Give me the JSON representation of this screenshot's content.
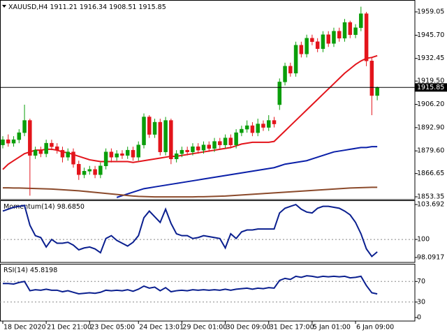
{
  "chart_data": [
    {
      "type": "candlestick",
      "symbol": "XAUUSD,H4",
      "categories": [
        "18 Dec 2020",
        null,
        null,
        null,
        null,
        null,
        null,
        null,
        "21 Dec 21:00",
        null,
        null,
        null,
        null,
        null,
        null,
        null,
        "23 Dec 05:00",
        null,
        null,
        null,
        null,
        null,
        null,
        null,
        null,
        "24 Dec 13:01",
        null,
        null,
        null,
        null,
        null,
        null,
        null,
        "29 Dec 01:00",
        null,
        null,
        null,
        null,
        null,
        null,
        null,
        "30 Dec 09:00",
        null,
        null,
        null,
        null,
        null,
        null,
        null,
        "31 Dec 17:00",
        null,
        null,
        null,
        null,
        null,
        null,
        null,
        "5 Jan 01:00",
        null,
        null,
        null,
        null,
        null,
        null,
        null,
        "6 Jan 09:00",
        null,
        null,
        null,
        null
      ],
      "ohlc": {
        "open": [
          1883,
          1886,
          1884,
          1886,
          1890,
          1897,
          1877,
          1880,
          1878,
          1884,
          1882,
          1880,
          1876,
          1879,
          1872,
          1866,
          1868,
          1869,
          1866,
          1871,
          1879,
          1876,
          1878,
          1877,
          1880,
          1876,
          1883,
          1899,
          1889,
          1896,
          1879,
          1897,
          1875,
          1878,
          1880,
          1879,
          1882,
          1880,
          1883,
          1881,
          1885,
          1883,
          1887,
          1883,
          1890,
          1892,
          1894,
          1890,
          1895,
          1893,
          1897,
          1906,
          1919,
          1928,
          1924,
          1940,
          1935,
          1944,
          1942,
          1938,
          1946,
          1941,
          1948,
          1944,
          1953,
          1946,
          1950,
          1958,
          1931,
          1911.21
        ],
        "high": [
          1888,
          1889,
          1888,
          1892,
          1906,
          1898,
          1882,
          1882,
          1886,
          1886,
          1884,
          1882,
          1881,
          1881,
          1874,
          1870,
          1871,
          1871,
          1873,
          1881,
          1881,
          1880,
          1880,
          1882,
          1882,
          1885,
          1901,
          1900,
          1898,
          1898,
          1899,
          1898,
          1880,
          1882,
          1882,
          1884,
          1884,
          1885,
          1885,
          1887,
          1887,
          1889,
          1889,
          1892,
          1894,
          1897,
          1896,
          1898,
          1897,
          1900,
          1899,
          1921,
          1930,
          1930,
          1942,
          1942,
          1946,
          1946,
          1944,
          1948,
          1948,
          1950,
          1950,
          1955,
          1954,
          1952,
          1962,
          1959,
          1933,
          1916.34
        ],
        "low": [
          1881,
          1882,
          1882,
          1884,
          1888,
          1854,
          1875,
          1876,
          1876,
          1880,
          1878,
          1873,
          1874,
          1870,
          1863,
          1864,
          1866,
          1864,
          1864,
          1869,
          1873,
          1874,
          1875,
          1875,
          1874,
          1874,
          1881,
          1887,
          1887,
          1877,
          1877,
          1872,
          1873,
          1876,
          1877,
          1877,
          1878,
          1878,
          1879,
          1879,
          1881,
          1881,
          1881,
          1881,
          1888,
          1890,
          1888,
          1888,
          1891,
          1891,
          1893,
          1903,
          1917,
          1922,
          1922,
          1933,
          1933,
          1940,
          1936,
          1936,
          1939,
          1939,
          1942,
          1942,
          1944,
          1944,
          1948,
          1928,
          1900,
          1908.51
        ],
        "close": [
          1886,
          1884,
          1886,
          1890,
          1897,
          1877,
          1880,
          1878,
          1884,
          1882,
          1880,
          1876,
          1879,
          1872,
          1866,
          1868,
          1869,
          1866,
          1871,
          1879,
          1876,
          1878,
          1877,
          1880,
          1876,
          1883,
          1899,
          1889,
          1896,
          1879,
          1897,
          1875,
          1878,
          1880,
          1879,
          1882,
          1880,
          1883,
          1881,
          1885,
          1883,
          1887,
          1883,
          1890,
          1892,
          1894,
          1890,
          1895,
          1893,
          1897,
          1895,
          1919,
          1928,
          1924,
          1940,
          1935,
          1944,
          1942,
          1938,
          1946,
          1941,
          1948,
          1944,
          1953,
          1946,
          1950,
          1958,
          1931,
          1911.2,
          1915.85
        ]
      },
      "up_color": "#0a9e0a",
      "down_color": "#e3141b",
      "moving_averages": [
        {
          "color": "#e3141b",
          "values": [
            1869,
            1872,
            1874,
            1876,
            1878,
            1879,
            1880,
            1880,
            1880.5,
            1880.5,
            1880,
            1879,
            1878.5,
            1877.5,
            1876.5,
            1875.5,
            1874.5,
            1874,
            1873.5,
            1873.5,
            1873.5,
            1873.5,
            1873.5,
            1873.5,
            1873,
            1873.5,
            1874,
            1874.5,
            1875,
            1875.5,
            1876,
            1876.5,
            1876.5,
            1877,
            1877.5,
            1878,
            1878.5,
            1879,
            1879.5,
            1880,
            1880.5,
            1881,
            1881.5,
            1882.5,
            1883.5,
            1884,
            1884.5,
            1884.5,
            1884.5,
            1884.5,
            1885,
            1888,
            1891,
            1894,
            1897,
            1900,
            1903,
            1906,
            1909,
            1912,
            1915,
            1918,
            1921,
            1924,
            1926.5,
            1929,
            1931,
            1932.5,
            1933,
            1934
          ]
        },
        {
          "color": "#0a1fa8",
          "values": [
            null,
            null,
            null,
            null,
            null,
            null,
            null,
            null,
            null,
            null,
            null,
            null,
            null,
            null,
            null,
            null,
            null,
            null,
            null,
            null,
            null,
            1853,
            1854,
            1855,
            1856,
            1857,
            1858,
            1858.5,
            1859,
            1859.5,
            1860,
            1860.5,
            1861,
            1861.5,
            1862,
            1862.5,
            1863,
            1863.5,
            1864,
            1864.5,
            1865,
            1865.5,
            1866,
            1866.5,
            1867,
            1867.5,
            1868,
            1868.5,
            1869,
            1869.5,
            1870,
            1871,
            1872,
            1872.5,
            1873,
            1873.5,
            1874,
            1875,
            1876,
            1877,
            1878,
            1879,
            1879.5,
            1880,
            1880.5,
            1881,
            1881.5,
            1881.5,
            1882,
            1882
          ]
        },
        {
          "color": "#8b4a2b",
          "values": [
            1858.5,
            1858.5,
            1858.4,
            1858.4,
            1858.3,
            1858.2,
            1858.1,
            1858,
            1857.9,
            1857.8,
            1857.6,
            1857.4,
            1857.2,
            1857,
            1856.8,
            1856.5,
            1856.2,
            1855.9,
            1855.6,
            1855.3,
            1855,
            1854.7,
            1854.4,
            1854.1,
            1853.8,
            1853.6,
            1853.5,
            1853.4,
            1853.3,
            1853.3,
            1853.3,
            1853.3,
            1853.3,
            1853.3,
            1853.3,
            1853.3,
            1853.4,
            1853.4,
            1853.5,
            1853.6,
            1853.7,
            1853.8,
            1854,
            1854.2,
            1854.4,
            1854.6,
            1854.8,
            1855,
            1855.2,
            1855.4,
            1855.6,
            1855.8,
            1856,
            1856.2,
            1856.4,
            1856.6,
            1856.8,
            1857,
            1857.2,
            1857.4,
            1857.6,
            1857.8,
            1858,
            1858.2,
            1858.4,
            1858.5,
            1858.6,
            1858.7,
            1858.8,
            1858.8
          ]
        }
      ],
      "current_price": 1915.85,
      "ylim": [
        1851.75,
        1965.43
      ],
      "yticks": [
        1959.05,
        {
          "value": 1945.7,
          "label": "1945.70"
        },
        1932.45,
        {
          "value": 1919.5,
          "label": "1919.50"
        },
        {
          "value": 1906.2,
          "label": "1906.20"
        },
        {
          "value": 1892.9,
          "label": "1892.90"
        },
        {
          "value": 1879.6,
          "label": "1879.60"
        },
        1866.65,
        1853.35
      ]
    },
    {
      "type": "line",
      "title": "Momentum(14)",
      "value_label": "98.6850",
      "color": "#0a1f8f",
      "values": [
        103.0,
        103.2,
        103.4,
        103.5,
        103.6,
        101.5,
        100.4,
        100.2,
        99.2,
        100.0,
        99.6,
        99.6,
        99.7,
        99.4,
        98.9,
        99.1,
        99.2,
        99.0,
        98.6,
        100.1,
        100.4,
        99.9,
        99.6,
        99.3,
        99.7,
        100.4,
        102.3,
        103.0,
        102.4,
        101.8,
        103.2,
        101.7,
        100.6,
        100.4,
        100.4,
        100.1,
        100.2,
        100.4,
        100.3,
        100.2,
        100.1,
        99.1,
        100.6,
        100.1,
        100.8,
        101.0,
        101.0,
        101.1,
        101.1,
        101.1,
        101.1,
        102.8,
        103.3,
        103.5,
        103.692,
        103.2,
        102.9,
        102.8,
        103.3,
        103.5,
        103.5,
        103.4,
        103.3,
        103.0,
        102.6,
        101.8,
        100.6,
        99.0,
        98.2,
        98.685
      ],
      "ylim": [
        97.57,
        104.14
      ],
      "yticks": [
        103.692,
        100,
        98.0917
      ],
      "levels": [
        100
      ]
    },
    {
      "type": "line",
      "title": "RSI(14)",
      "color": "#0a1f8f",
      "values": [
        66,
        66,
        65,
        68,
        70,
        52,
        54,
        53,
        55,
        53,
        53,
        50,
        52,
        49,
        46,
        47,
        48,
        47,
        49,
        53,
        52,
        53,
        52,
        54,
        51,
        55,
        61,
        57,
        59,
        52,
        58,
        50,
        52,
        53,
        52,
        54,
        53,
        54,
        53,
        54,
        53,
        55,
        53,
        55,
        56,
        57,
        55,
        57,
        56,
        58,
        57,
        72,
        76,
        74,
        80,
        78,
        81,
        80,
        78,
        80,
        79,
        80,
        79,
        80,
        77,
        78,
        80,
        62,
        48,
        45.8198
      ],
      "ylim": [
        -6.86,
        102.9
      ],
      "yticks": [
        70,
        30,
        0
      ],
      "levels": [
        70,
        30
      ]
    }
  ]
}
